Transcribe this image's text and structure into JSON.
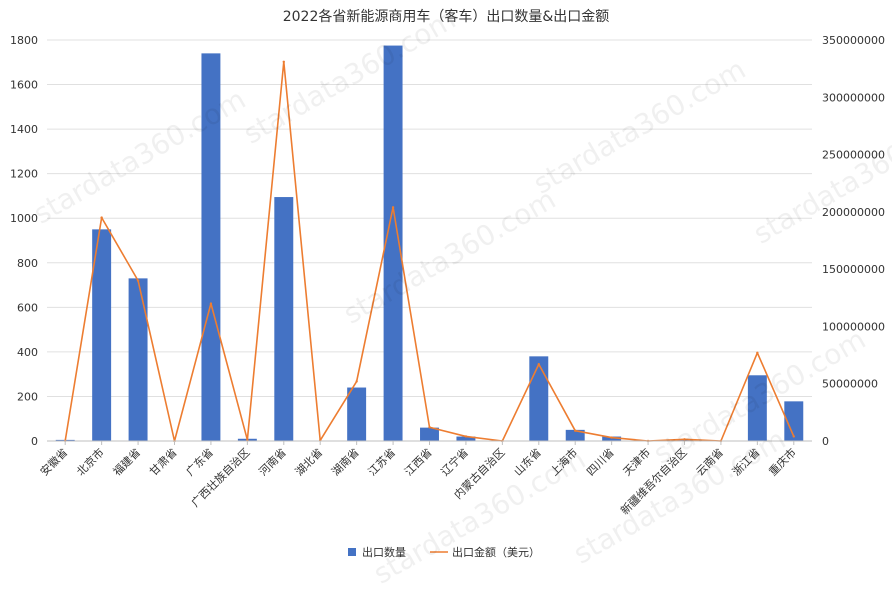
{
  "chart_data": {
    "type": "bar",
    "title": "2022各省新能源商用车（客车）出口数量&出口金额",
    "categories": [
      "安徽省",
      "北京市",
      "福建省",
      "甘肃省",
      "广东省",
      "广西壮族自治区",
      "河南省",
      "湖北省",
      "湖南省",
      "江苏省",
      "江西省",
      "辽宁省",
      "内蒙古自治区",
      "山东省",
      "上海市",
      "四川省",
      "天津市",
      "新疆维吾尔自治区",
      "云南省",
      "浙江省",
      "重庆市"
    ],
    "series": [
      {
        "name": "出口数量",
        "type": "bar",
        "axis": "left",
        "color": "#4472C4",
        "values": [
          5,
          950,
          730,
          0,
          1740,
          10,
          1095,
          2,
          240,
          1775,
          60,
          20,
          0,
          380,
          50,
          20,
          0,
          5,
          0,
          295,
          178
        ]
      },
      {
        "name": "出口金额（美元）",
        "type": "line",
        "axis": "right",
        "color": "#ED7D31",
        "values": [
          200000,
          195000000,
          140000000,
          0,
          120000000,
          1000000,
          331000000,
          500000,
          52000000,
          204000000,
          12000000,
          4000000,
          0,
          67000000,
          9000000,
          3000000,
          0,
          1500000,
          0,
          77000000,
          4000000
        ]
      }
    ],
    "y_left": {
      "min": 0,
      "max": 1800,
      "step": 200
    },
    "y_right": {
      "min": 0,
      "max": 350000000,
      "step": 50000000
    },
    "grid": true,
    "legend_position": "bottom-center",
    "watermark": "stardata360.com"
  }
}
